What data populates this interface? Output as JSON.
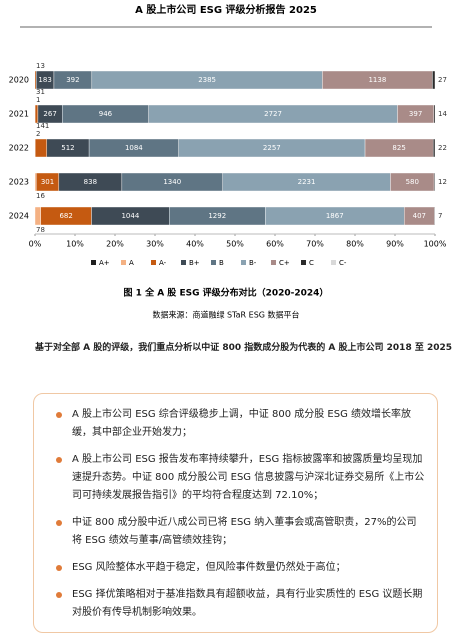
{
  "header": {
    "title": "A 股上市公司 ESG 评级分析报告 2025"
  },
  "chart_data": {
    "type": "bar",
    "orientation": "horizontal",
    "stacked": "percent",
    "categories": [
      "2020",
      "2021",
      "2022",
      "2023",
      "2024"
    ],
    "series": [
      {
        "name": "A+",
        "color": "#1f1f1f",
        "values": [
          0,
          0,
          0,
          0,
          0
        ]
      },
      {
        "name": "A",
        "color": "#f4b183",
        "values": [
          0,
          1,
          2,
          16,
          78
        ]
      },
      {
        "name": "A-",
        "color": "#c55a11",
        "values": [
          13,
          31,
          141,
          301,
          682
        ]
      },
      {
        "name": "B+",
        "color": "#3e4a55",
        "values": [
          183,
          267,
          512,
          838,
          1044
        ]
      },
      {
        "name": "B",
        "color": "#5f7584",
        "values": [
          392,
          946,
          1084,
          1340,
          1292
        ]
      },
      {
        "name": "B-",
        "color": "#8aa2b1",
        "values": [
          2385,
          2727,
          2257,
          2231,
          1867
        ]
      },
      {
        "name": "C+",
        "color": "#a98b88",
        "values": [
          1138,
          397,
          825,
          580,
          407
        ]
      },
      {
        "name": "C",
        "color": "#2b2b2b",
        "values": [
          27,
          14,
          22,
          12,
          7
        ]
      },
      {
        "name": "C-",
        "color": "#d9d9d9",
        "values": [
          0,
          0,
          0,
          0,
          0
        ]
      }
    ],
    "xlim": [
      0,
      100
    ],
    "xticks": [
      {
        "value": 0,
        "label": "0%"
      },
      {
        "value": 10,
        "label": "10%"
      },
      {
        "value": 20,
        "label": "20%"
      },
      {
        "value": 30,
        "label": "30%"
      },
      {
        "value": 40,
        "label": "40%"
      },
      {
        "value": 50,
        "label": "50%"
      },
      {
        "value": 60,
        "label": "60%"
      },
      {
        "value": 70,
        "label": "70%"
      },
      {
        "value": 80,
        "label": "80%"
      },
      {
        "value": 90,
        "label": "90%"
      },
      {
        "value": 100,
        "label": "100%"
      }
    ],
    "legend": "bottom"
  },
  "figure": {
    "caption": "图 1 全 A 股 ESG 评级分布对比（2020-2024）",
    "source": "数据来源：商道融绿 STaR ESG 数据平台"
  },
  "intro": "基于对全部 A 股的评级，我们重点分析以中证 800 指数成分股为代表的 A 股上市公司 2018 至 2025",
  "bullets": [
    "A 股上市公司 ESG 综合评级稳步上调，中证 800 成分股 ESG 绩效增长率放缓，其中部企业开始发力；",
    "A 股上市公司 ESG 报告发布率持续攀升，ESG 指标披露率和披露质量均呈现加速提升态势。中证 800 成分股公司 ESG 信息披露与沪深北证券交易所《上市公司可持续发展报告指引》的平均符合程度达到 72.10%；",
    "中证 800 成分股中近八成公司已将 ESG 纳入董事会或高管职责，27%的公司将 ESG 绩效与董事/高管绩效挂钩；",
    "ESG 风险整体水平趋于稳定，但风险事件数量仍然处于高位；",
    "ESG 择优策略相对于基准指数具有超额收益，具有行业实质性的 ESG 议题长期对股价有传导机制影响效果。"
  ]
}
